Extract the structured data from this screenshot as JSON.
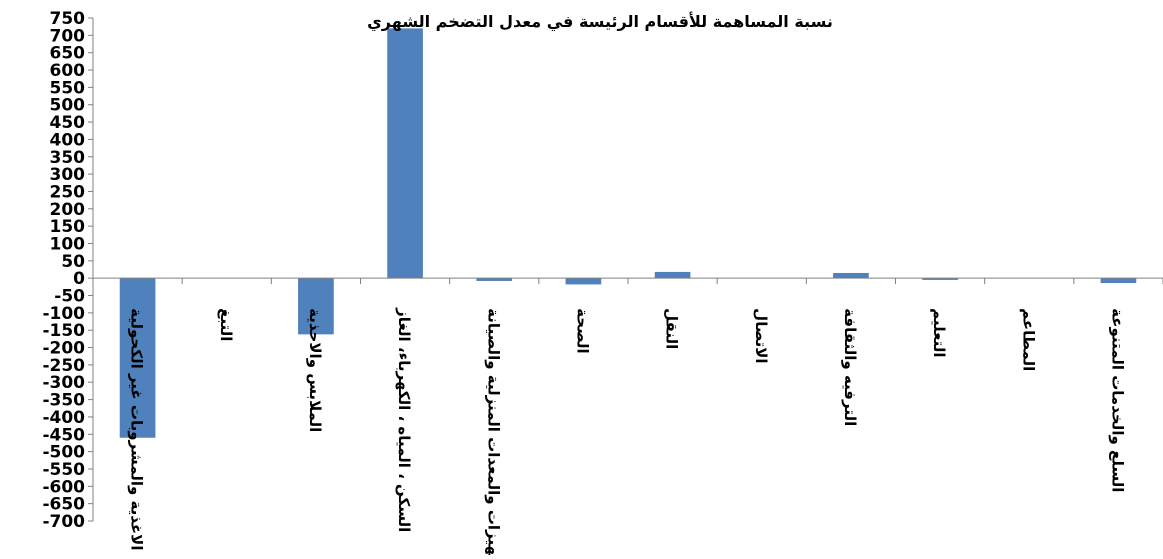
{
  "chart_data": {
    "type": "bar",
    "title": "نسبة المساهمة للأقسام الرئيسة في معدل التضخم الشهري",
    "xlabel": "",
    "ylabel": "",
    "ylim": [
      -700,
      750
    ],
    "ytick_step": 50,
    "grid": false,
    "legend": "none",
    "bar_color": "#4F81BD",
    "y_ticks": [
      "750",
      "700",
      "650",
      "600",
      "550",
      "500",
      "450",
      "400",
      "350",
      "300",
      "250",
      "200",
      "150",
      "100",
      "50",
      "0",
      "-50",
      "-100",
      "-150",
      "-200",
      "-250",
      "-300",
      "-350",
      "-400",
      "-450",
      "-500",
      "-550",
      "-600",
      "-650",
      "-700"
    ],
    "categories": [
      "الاغذية والمشروبات غير الكحولية",
      "التبغ",
      "الملابس والاحذية",
      "السكن ، المياه ، الكهرباء، الغاز",
      "التجهيزات والمعدات المنزلية والصيانة",
      "الصحة",
      "النقل",
      "الاتصال",
      "الترفيه والثقافة",
      "التعليم",
      "المطاعم",
      "السلع والخدمات المتنوعة"
    ],
    "values": [
      -460,
      0,
      -162,
      720,
      -8,
      -18,
      18,
      0,
      15,
      -5,
      0,
      -14
    ]
  }
}
